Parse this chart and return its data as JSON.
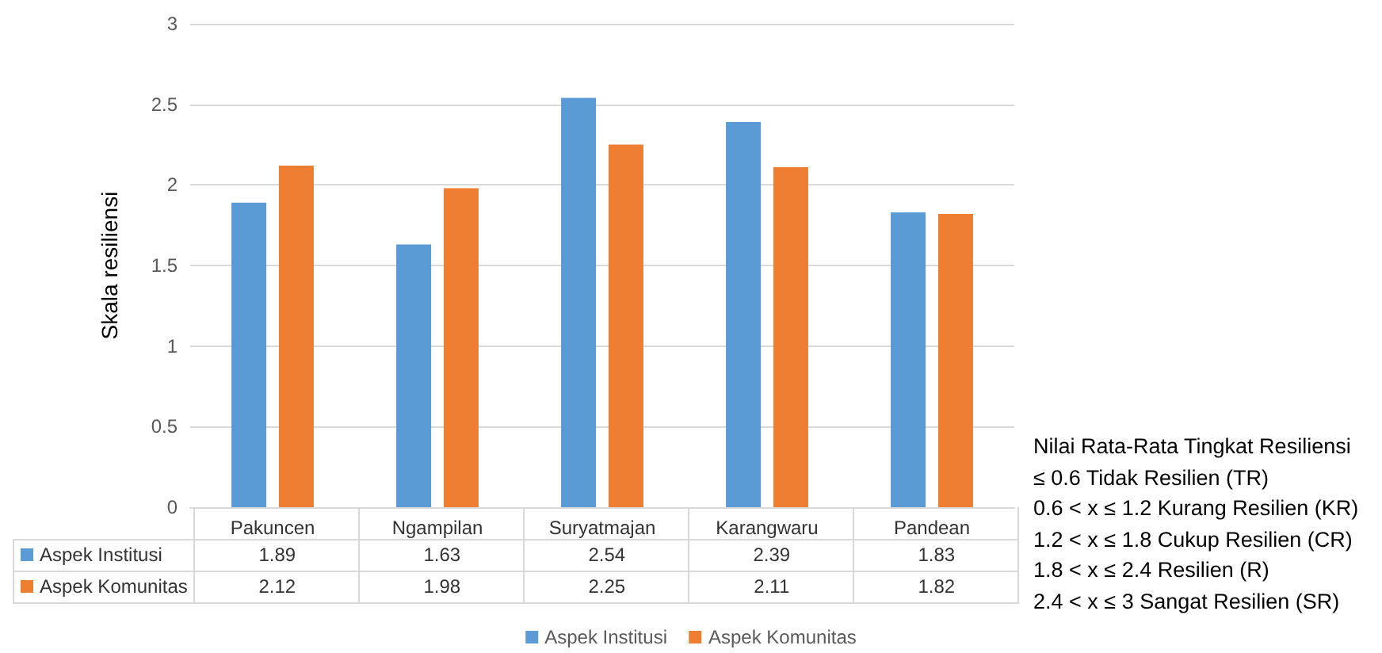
{
  "chart_data": {
    "type": "bar",
    "ylabel": "Skala resiliensi",
    "categories": [
      "Pakuncen",
      "Ngampilan",
      "Suryatmajan",
      "Karangwaru",
      "Pandean"
    ],
    "series": [
      {
        "name": "Aspek Institusi",
        "color": "#5b9bd5",
        "values": [
          1.89,
          1.63,
          2.54,
          2.39,
          1.83
        ]
      },
      {
        "name": "Aspek Komunitas",
        "color": "#ed7d31",
        "values": [
          2.12,
          1.98,
          2.25,
          2.11,
          1.82
        ]
      }
    ],
    "ylim": [
      0,
      3
    ],
    "yticks": [
      0,
      0.5,
      1,
      1.5,
      2,
      2.5,
      3
    ],
    "grid": "y",
    "legend": "bottom",
    "data_labels": true,
    "annotations": [
      "Nilai Rata-Rata Tingkat Resiliensi",
      "≤ 0.6 Tidak Resilien (TR)",
      "0.6 < x ≤ 1.2 Kurang Resilien (KR)",
      "1.2 < x ≤ 1.8 Cukup Resilien (CR)",
      "1.8 < x ≤ 2.4 Resilien (R)",
      "2.4 < x ≤ 3 Sangat Resilien (SR)"
    ]
  }
}
